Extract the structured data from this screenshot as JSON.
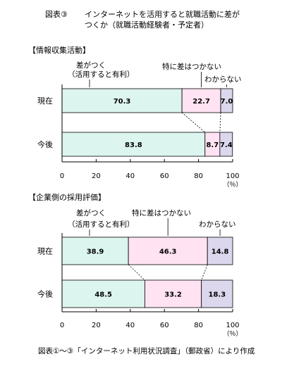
{
  "header": {
    "figure_label": "図表③",
    "title_line1": "インターネットを活用すると就職活動に差が",
    "title_line2": "つくか（就職活動経験者・予定者）"
  },
  "footer": "図表①～③「インターネット利用状況調査」（郵政省）により作成",
  "colors": {
    "teal": "#dcf5ef",
    "pink": "#ffe3f2",
    "lavender": "#dcd7ec"
  },
  "chart_data": [
    {
      "type": "bar",
      "stacked": true,
      "orientation": "horizontal",
      "section_title": "【情報収集活動】",
      "categories": [
        "現在",
        "今後"
      ],
      "series": [
        {
          "name": "差がつく（活用すると有利）",
          "values": [
            70.3,
            83.8
          ]
        },
        {
          "name": "特に差はつかない",
          "values": [
            22.7,
            8.7
          ]
        },
        {
          "name": "わからない",
          "values": [
            7.0,
            7.4
          ]
        }
      ],
      "value_labels": [
        [
          "70.3",
          "22.7",
          "7.0"
        ],
        [
          "83.8",
          "8.7",
          "7.4"
        ]
      ],
      "xlim": [
        0,
        100
      ],
      "xticks": [
        "0",
        "20",
        "40",
        "60",
        "80",
        "100"
      ],
      "unit": "（％）",
      "grid": false
    },
    {
      "type": "bar",
      "stacked": true,
      "orientation": "horizontal",
      "section_title": "【企業側の採用評価】",
      "categories": [
        "現在",
        "今後"
      ],
      "series": [
        {
          "name": "差がつく（活用すると有利）",
          "values": [
            38.9,
            48.5
          ]
        },
        {
          "name": "特に差はつかない",
          "values": [
            46.3,
            33.2
          ]
        },
        {
          "name": "わからない",
          "values": [
            14.8,
            18.3
          ]
        }
      ],
      "value_labels": [
        [
          "38.9",
          "46.3",
          "14.8"
        ],
        [
          "48.5",
          "33.2",
          "18.3"
        ]
      ],
      "xlim": [
        0,
        100
      ],
      "xticks": [
        "0",
        "20",
        "40",
        "60",
        "80",
        "100"
      ],
      "unit": "（％）",
      "grid": false
    }
  ]
}
